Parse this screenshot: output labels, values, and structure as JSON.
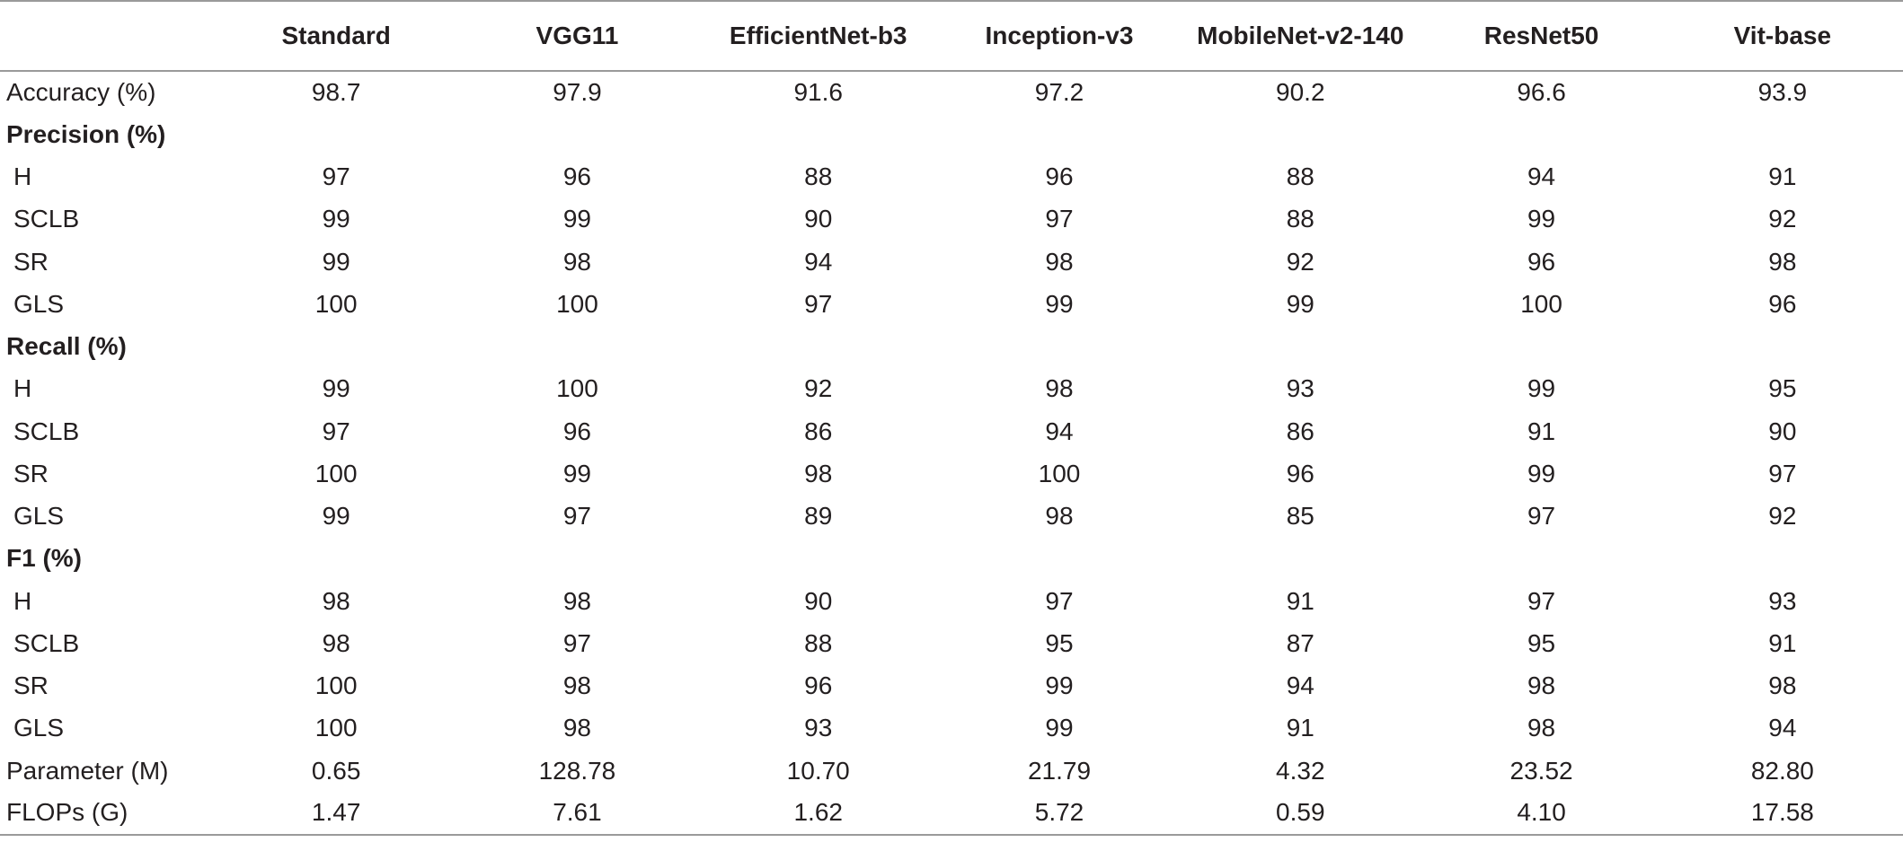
{
  "table": {
    "columns": [
      "",
      "Standard",
      "VGG11",
      "EfficientNet-b3",
      "Inception-v3",
      "MobileNet-v2-140",
      "ResNet50",
      "Vit-base"
    ],
    "rows": [
      {
        "type": "metric",
        "label": "Accuracy (%)",
        "values": [
          "98.7",
          "97.9",
          "91.6",
          "97.2",
          "90.2",
          "96.6",
          "93.9"
        ]
      },
      {
        "type": "section",
        "label": "Precision (%)",
        "values": [
          "",
          "",
          "",
          "",
          "",
          "",
          ""
        ]
      },
      {
        "type": "sub",
        "label": "H",
        "values": [
          "97",
          "96",
          "88",
          "96",
          "88",
          "94",
          "91"
        ]
      },
      {
        "type": "sub",
        "label": "SCLB",
        "values": [
          "99",
          "99",
          "90",
          "97",
          "88",
          "99",
          "92"
        ]
      },
      {
        "type": "sub",
        "label": "SR",
        "values": [
          "99",
          "98",
          "94",
          "98",
          "92",
          "96",
          "98"
        ]
      },
      {
        "type": "sub",
        "label": "GLS",
        "values": [
          "100",
          "100",
          "97",
          "99",
          "99",
          "100",
          "96"
        ]
      },
      {
        "type": "section",
        "label": "Recall (%)",
        "values": [
          "",
          "",
          "",
          "",
          "",
          "",
          ""
        ]
      },
      {
        "type": "sub",
        "label": "H",
        "values": [
          "99",
          "100",
          "92",
          "98",
          "93",
          "99",
          "95"
        ]
      },
      {
        "type": "sub",
        "label": "SCLB",
        "values": [
          "97",
          "96",
          "86",
          "94",
          "86",
          "91",
          "90"
        ]
      },
      {
        "type": "sub",
        "label": "SR",
        "values": [
          "100",
          "99",
          "98",
          "100",
          "96",
          "99",
          "97"
        ]
      },
      {
        "type": "sub",
        "label": "GLS",
        "values": [
          "99",
          "97",
          "89",
          "98",
          "85",
          "97",
          "92"
        ]
      },
      {
        "type": "section",
        "label": "F1 (%)",
        "values": [
          "",
          "",
          "",
          "",
          "",
          "",
          ""
        ]
      },
      {
        "type": "sub",
        "label": "H",
        "values": [
          "98",
          "98",
          "90",
          "97",
          "91",
          "97",
          "93"
        ]
      },
      {
        "type": "sub",
        "label": "SCLB",
        "values": [
          "98",
          "97",
          "88",
          "95",
          "87",
          "95",
          "91"
        ]
      },
      {
        "type": "sub",
        "label": "SR",
        "values": [
          "100",
          "98",
          "96",
          "99",
          "94",
          "98",
          "98"
        ]
      },
      {
        "type": "sub",
        "label": "GLS",
        "values": [
          "100",
          "98",
          "93",
          "99",
          "91",
          "98",
          "94"
        ]
      },
      {
        "type": "metric",
        "label": "Parameter (M)",
        "values": [
          "0.65",
          "128.78",
          "10.70",
          "21.79",
          "4.32",
          "23.52",
          "82.80"
        ]
      },
      {
        "type": "metric",
        "label": "FLOPs (G)",
        "values": [
          "1.47",
          "7.61",
          "1.62",
          "5.72",
          "0.59",
          "4.10",
          "17.58"
        ]
      }
    ]
  },
  "colors": {
    "text": "#231f20",
    "rule": "#9a9a9a"
  }
}
